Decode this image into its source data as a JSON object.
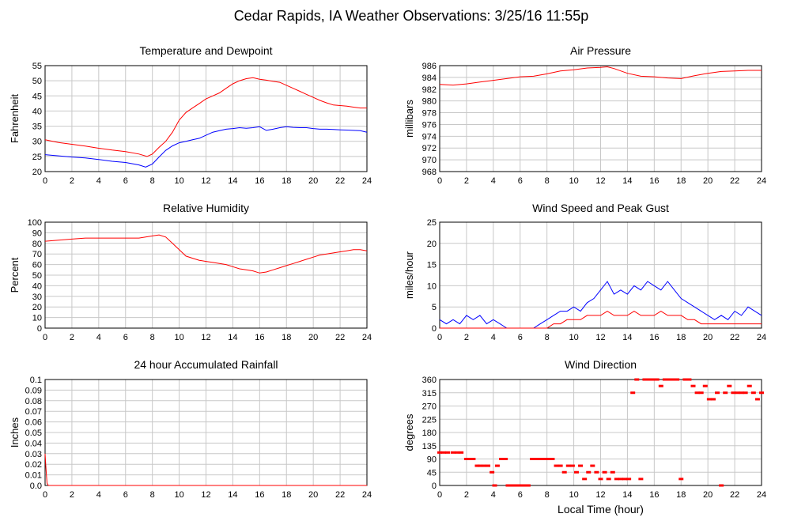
{
  "page": {
    "title": "Cedar Rapids, IA Weather Observations: 3/25/16 11:55p",
    "shared_xlabel": "Local Time (hour)"
  },
  "colors": {
    "red": "#ff0000",
    "blue": "#0000ff",
    "grid": "#c8c8c8",
    "axis": "#000000"
  },
  "chart_data": [
    {
      "id": "temp",
      "type": "line",
      "title": "Temperature and Dewpoint",
      "xlabel": "",
      "ylabel": "Fahrenheit",
      "xlim": [
        0,
        24
      ],
      "ylim": [
        20,
        55
      ],
      "xticks": [
        0,
        2,
        4,
        6,
        8,
        10,
        12,
        14,
        16,
        18,
        20,
        22,
        24
      ],
      "yticks": [
        20,
        25,
        30,
        35,
        40,
        45,
        50,
        55
      ],
      "grid": true,
      "series": [
        {
          "color": "#ff0000",
          "x": [
            0,
            1,
            2,
            3,
            4,
            5,
            6,
            7,
            7.6,
            8,
            8.5,
            9,
            9.5,
            10,
            10.5,
            11,
            11.5,
            12,
            12.5,
            13,
            13.5,
            14,
            14.5,
            15,
            15.5,
            16,
            16.5,
            17,
            17.5,
            18,
            18.5,
            19,
            19.5,
            20,
            20.5,
            21,
            21.5,
            22,
            22.5,
            23,
            23.5,
            24
          ],
          "values": [
            30.5,
            29.6,
            29,
            28.4,
            27.7,
            27.1,
            26.6,
            25.8,
            25,
            25.8,
            28,
            30,
            33,
            37,
            39.5,
            41,
            42.5,
            44,
            45,
            46,
            47.5,
            49,
            50,
            50.7,
            51,
            50.5,
            50.2,
            49.8,
            49.5,
            48.5,
            47.5,
            46.5,
            45.5,
            44.5,
            43.5,
            42.7,
            42,
            41.8,
            41.6,
            41.3,
            41,
            41
          ]
        },
        {
          "color": "#0000ff",
          "x": [
            0,
            1,
            2,
            3,
            4,
            5,
            6,
            7,
            7.5,
            8,
            8.5,
            9,
            9.5,
            10,
            10.5,
            11,
            11.5,
            12,
            12.5,
            13,
            13.5,
            14,
            14.5,
            15,
            15.5,
            16,
            16.5,
            17,
            17.5,
            18,
            18.5,
            19,
            19.5,
            20,
            20.5,
            21,
            21.5,
            22,
            22.5,
            23,
            23.5,
            24
          ],
          "values": [
            25.6,
            25.2,
            24.8,
            24.5,
            24,
            23.4,
            23,
            22.2,
            21.5,
            22.5,
            24.8,
            27,
            28.5,
            29.5,
            30,
            30.5,
            31,
            32,
            33,
            33.5,
            34,
            34.2,
            34.5,
            34.3,
            34.5,
            34.8,
            33.6,
            34,
            34.5,
            34.8,
            34.6,
            34.5,
            34.5,
            34.2,
            34,
            34,
            33.9,
            33.8,
            33.7,
            33.6,
            33.5,
            33
          ]
        }
      ]
    },
    {
      "id": "pressure",
      "type": "line",
      "title": "Air Pressure",
      "xlabel": "",
      "ylabel": "millibars",
      "xlim": [
        0,
        24
      ],
      "ylim": [
        968,
        986
      ],
      "xticks": [
        0,
        2,
        4,
        6,
        8,
        10,
        12,
        14,
        16,
        18,
        20,
        22,
        24
      ],
      "yticks": [
        968,
        970,
        972,
        974,
        976,
        978,
        980,
        982,
        984,
        986
      ],
      "grid": true,
      "series": [
        {
          "color": "#ff0000",
          "x": [
            0,
            1,
            2,
            3,
            4,
            5,
            6,
            7,
            8,
            9,
            10,
            11,
            12,
            12.5,
            13,
            14,
            15,
            16,
            17,
            18,
            19,
            20,
            21,
            22,
            23,
            24
          ],
          "values": [
            982.8,
            982.7,
            982.9,
            983.2,
            983.5,
            983.8,
            984.1,
            984.2,
            984.6,
            985.1,
            985.3,
            985.6,
            985.7,
            985.8,
            985.5,
            984.7,
            984.2,
            984.1,
            983.9,
            983.8,
            984.3,
            984.7,
            985,
            985.1,
            985.2,
            985.2
          ]
        }
      ]
    },
    {
      "id": "humidity",
      "type": "line",
      "title": "Relative Humidity",
      "xlabel": "",
      "ylabel": "Percent",
      "xlim": [
        0,
        24
      ],
      "ylim": [
        0,
        100
      ],
      "xticks": [
        0,
        2,
        4,
        6,
        8,
        10,
        12,
        14,
        16,
        18,
        20,
        22,
        24
      ],
      "yticks": [
        0,
        10,
        20,
        30,
        40,
        50,
        60,
        70,
        80,
        90,
        100
      ],
      "grid": true,
      "series": [
        {
          "color": "#ff0000",
          "x": [
            0,
            1,
            2,
            3,
            4,
            5,
            6,
            7,
            8,
            8.5,
            9,
            9.5,
            10,
            10.5,
            11,
            11.5,
            12,
            12.5,
            13,
            13.5,
            14,
            14.5,
            15,
            15.5,
            16,
            16.5,
            17,
            17.5,
            18,
            18.5,
            19,
            19.5,
            20,
            20.5,
            21,
            21.5,
            22,
            22.5,
            23,
            23.5,
            24
          ],
          "values": [
            82,
            83,
            84,
            85,
            85,
            85,
            85,
            85,
            87,
            88,
            86,
            80,
            74,
            68,
            66,
            64,
            63,
            62,
            61,
            60,
            58,
            56,
            55,
            54,
            52,
            53,
            55,
            57,
            59,
            61,
            63,
            65,
            67,
            69,
            70,
            71,
            72,
            73,
            74,
            74,
            73
          ]
        }
      ]
    },
    {
      "id": "wind",
      "type": "line",
      "title": "Wind Speed and Peak Gust",
      "xlabel": "",
      "ylabel": "miles/hour",
      "xlim": [
        0,
        24
      ],
      "ylim": [
        0,
        25
      ],
      "xticks": [
        0,
        2,
        4,
        6,
        8,
        10,
        12,
        14,
        16,
        18,
        20,
        22,
        24
      ],
      "yticks": [
        0,
        5,
        10,
        15,
        20,
        25
      ],
      "grid": true,
      "series": [
        {
          "color": "#0000ff",
          "x": [
            0,
            0.5,
            1,
            1.5,
            2,
            2.5,
            3,
            3.5,
            4,
            4.5,
            5,
            5.5,
            6,
            6.5,
            7,
            7.5,
            8,
            8.5,
            9,
            9.5,
            10,
            10.5,
            11,
            11.5,
            12,
            12.5,
            13,
            13.5,
            14,
            14.5,
            15,
            15.5,
            16,
            16.5,
            17,
            17.5,
            18,
            18.5,
            19,
            19.5,
            20,
            20.5,
            21,
            21.5,
            22,
            22.5,
            23,
            23.5,
            24
          ],
          "values": [
            2,
            1,
            2,
            1,
            3,
            2,
            3,
            1,
            2,
            1,
            0,
            0,
            0,
            0,
            0,
            1,
            2,
            3,
            4,
            4,
            5,
            4,
            6,
            7,
            9,
            11,
            8,
            9,
            8,
            10,
            9,
            11,
            10,
            9,
            11,
            9,
            7,
            6,
            5,
            4,
            3,
            2,
            3,
            2,
            4,
            3,
            5,
            4,
            3
          ]
        },
        {
          "color": "#ff0000",
          "x": [
            0,
            1,
            2,
            3,
            4,
            5,
            6,
            7,
            8,
            8.5,
            9,
            9.5,
            10,
            10.5,
            11,
            11.5,
            12,
            12.5,
            13,
            13.5,
            14,
            14.5,
            15,
            15.5,
            16,
            16.5,
            17,
            17.5,
            18,
            18.5,
            19,
            19.5,
            20,
            20.5,
            21,
            21.5,
            22,
            22.5,
            23,
            23.5,
            24
          ],
          "values": [
            0,
            0,
            0,
            0,
            0,
            0,
            0,
            0,
            0,
            1,
            1,
            2,
            2,
            2,
            3,
            3,
            3,
            4,
            3,
            3,
            3,
            4,
            3,
            3,
            3,
            4,
            3,
            3,
            3,
            2,
            2,
            1,
            1,
            1,
            1,
            1,
            1,
            1,
            1,
            1,
            1
          ]
        }
      ]
    },
    {
      "id": "rain",
      "type": "line",
      "title": "24 hour Accumulated Rainfall",
      "xlabel": "",
      "ylabel": "Inches",
      "xlim": [
        0,
        24
      ],
      "ylim": [
        0,
        0.1
      ],
      "xticks": [
        0,
        2,
        4,
        6,
        8,
        10,
        12,
        14,
        16,
        18,
        20,
        22,
        24
      ],
      "yticks": [
        0.0,
        0.01,
        0.02,
        0.03,
        0.04,
        0.05,
        0.06,
        0.07,
        0.08,
        0.09,
        0.1
      ],
      "ytick_labels": [
        "0.0",
        "0.01",
        "0.02",
        "0.03",
        "0.04",
        "0.05",
        "0.06",
        "0.07",
        "0.08",
        "0.09",
        "0.1"
      ],
      "grid": true,
      "series": [
        {
          "color": "#ff0000",
          "x": [
            0,
            0.05,
            0.1,
            0.15,
            0.25,
            24
          ],
          "values": [
            0.03,
            0.02,
            0.01,
            0.002,
            0,
            0
          ]
        }
      ]
    },
    {
      "id": "direction",
      "type": "scatter",
      "title": "Wind Direction",
      "xlabel": "Local Time (hour)",
      "ylabel": "degrees",
      "xlim": [
        0,
        24
      ],
      "ylim": [
        0,
        360
      ],
      "xticks": [
        0,
        2,
        4,
        6,
        8,
        10,
        12,
        14,
        16,
        18,
        20,
        22,
        24
      ],
      "yticks": [
        0,
        45,
        90,
        135,
        180,
        225,
        270,
        315,
        360
      ],
      "grid": true,
      "series": [
        {
          "color": "#ff0000",
          "x": [
            0,
            0.3,
            0.6,
            1,
            1.3,
            1.6,
            2,
            2.2,
            2.5,
            2.8,
            3,
            3.3,
            3.6,
            3.9,
            4.1,
            4.3,
            4.6,
            4.9,
            5.1,
            5.4,
            5.7,
            6,
            6.3,
            6.6,
            6.9,
            7.2,
            7.5,
            7.8,
            8.1,
            8.4,
            8.7,
            9,
            9.3,
            9.6,
            9.9,
            10.2,
            10.5,
            10.8,
            11.1,
            11.4,
            11.7,
            12,
            12.3,
            12.6,
            12.9,
            13.2,
            13.5,
            13.8,
            14.1,
            14.4,
            14.7,
            15,
            15.3,
            15.6,
            15.9,
            16.2,
            16.5,
            16.8,
            17.1,
            17.4,
            17.7,
            18,
            18.3,
            18.6,
            18.9,
            19.2,
            19.5,
            19.8,
            20.1,
            20.4,
            20.7,
            21,
            21.3,
            21.6,
            21.9,
            22.2,
            22.5,
            22.8,
            23.1,
            23.4,
            23.7,
            24
          ],
          "values": [
            112,
            112,
            112,
            112,
            112,
            112,
            90,
            90,
            90,
            67,
            67,
            67,
            67,
            45,
            0,
            67,
            90,
            90,
            0,
            0,
            0,
            0,
            0,
            0,
            90,
            90,
            90,
            90,
            90,
            90,
            67,
            67,
            45,
            67,
            67,
            45,
            67,
            22,
            45,
            67,
            45,
            22,
            45,
            22,
            45,
            22,
            22,
            22,
            22,
            315,
            360,
            22,
            360,
            360,
            360,
            360,
            338,
            360,
            360,
            360,
            360,
            22,
            360,
            360,
            338,
            315,
            315,
            338,
            293,
            293,
            315,
            0,
            315,
            338,
            315,
            315,
            315,
            315,
            338,
            315,
            293,
            315
          ]
        }
      ]
    }
  ]
}
